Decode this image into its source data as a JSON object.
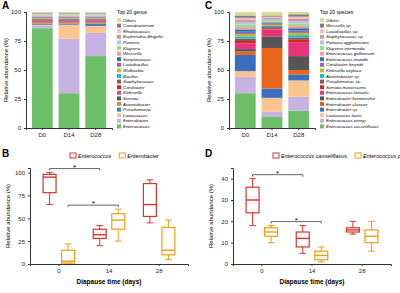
{
  "chart_data": [
    {
      "panel": "A",
      "type": "bar",
      "stacked": true,
      "categories": [
        "D0",
        "D14",
        "D28"
      ],
      "ylabel": "Relative abundance (%)",
      "ylim": [
        0,
        100
      ],
      "yticks": [
        0,
        25,
        50,
        75,
        100
      ],
      "legend_title": "Top 20 genus",
      "legend": "right",
      "series": [
        {
          "name": "Enterococcus",
          "color": "#6dbf67",
          "values": [
            86,
            30,
            62
          ]
        },
        {
          "name": "Enterobacter",
          "color": "#c6b3e3",
          "values": [
            2,
            47,
            20
          ]
        },
        {
          "name": "Lactococcus",
          "color": "#fcc48e",
          "values": [
            1,
            12,
            6
          ]
        },
        {
          "name": "Pseudomonas",
          "color": "#3f7fc1",
          "values": [
            1,
            1,
            2
          ]
        },
        {
          "name": "Acinetobacter",
          "color": "#f0802a",
          "values": [
            1,
            1,
            1
          ]
        },
        {
          "name": "Serratia",
          "color": "#5a5a5a",
          "values": [
            1,
            1,
            1
          ]
        },
        {
          "name": "Klebsiella",
          "color": "#e84a8a",
          "values": [
            1,
            1,
            1
          ]
        },
        {
          "name": "Citrobacter",
          "color": "#d62728",
          "values": [
            0.5,
            0.5,
            0.5
          ]
        },
        {
          "name": "Staphylococcus",
          "color": "#8c564b",
          "values": [
            0.5,
            0.5,
            0.5
          ]
        },
        {
          "name": "Bacillus",
          "color": "#17becf",
          "values": [
            0.5,
            0.5,
            0.5
          ]
        },
        {
          "name": "Wolbachia",
          "color": "#bcbd22",
          "values": [
            0.5,
            0.5,
            0.5
          ]
        },
        {
          "name": "Lactobacillus",
          "color": "#9467bd",
          "values": [
            0.5,
            0.5,
            0.5
          ]
        },
        {
          "name": "Streptococcus",
          "color": "#1f77b4",
          "values": [
            0.5,
            0.5,
            0.5
          ]
        },
        {
          "name": "Weissella",
          "color": "#ff9896",
          "values": [
            0.5,
            0.5,
            0.5
          ]
        },
        {
          "name": "Kluyvera",
          "color": "#98df8a",
          "values": [
            0.5,
            0.5,
            0.5
          ]
        },
        {
          "name": "Pantoea",
          "color": "#aec7e8",
          "values": [
            0.5,
            0.5,
            0.5
          ]
        },
        {
          "name": "Escherichia-Shigella",
          "color": "#c49c94",
          "values": [
            0.5,
            0.5,
            0.5
          ]
        },
        {
          "name": "Rhodococcus",
          "color": "#f7b6d2",
          "values": [
            0.5,
            0.5,
            0.5
          ]
        },
        {
          "name": "Carnobacterium",
          "color": "#7f7f7f",
          "values": [
            0.5,
            0.5,
            0.5
          ]
        },
        {
          "name": "Others",
          "color": "#dbdb8d",
          "values": [
            1,
            1,
            1
          ]
        }
      ]
    },
    {
      "panel": "B",
      "type": "box",
      "categories": [
        "0",
        "14",
        "28"
      ],
      "xlabel": "Diapause time (days)",
      "ylabel": "Relative abundance (%)",
      "ylim": [
        0,
        105
      ],
      "yticks": [
        0,
        25,
        50,
        75,
        100
      ],
      "legend": "top",
      "series": [
        {
          "name": "Enterococcus",
          "color": "#d9342b",
          "boxes": [
            {
              "min": 65,
              "q1": 78,
              "median": 95,
              "q3": 98,
              "max": 100
            },
            {
              "min": 20,
              "q1": 28,
              "median": 32,
              "q3": 38,
              "max": 42
            },
            {
              "min": 45,
              "q1": 52,
              "median": 65,
              "q3": 88,
              "max": 92
            }
          ]
        },
        {
          "name": "Enterobacter",
          "color": "#f39c12",
          "boxes": [
            {
              "min": 0,
              "q1": 1,
              "median": 3,
              "q3": 15,
              "max": 22
            },
            {
              "min": 25,
              "q1": 38,
              "median": 48,
              "q3": 55,
              "max": 60
            },
            {
              "min": 5,
              "q1": 10,
              "median": 15,
              "q3": 40,
              "max": 48
            }
          ]
        }
      ],
      "annotations": [
        {
          "text": "*",
          "series": 0,
          "from": 0,
          "to": 1
        },
        {
          "text": "*",
          "series": 1,
          "from": 0,
          "to": 1
        }
      ]
    },
    {
      "panel": "C",
      "type": "bar",
      "stacked": true,
      "categories": [
        "D0",
        "D14",
        "D28"
      ],
      "ylabel": "Relative abundance (%)",
      "ylim": [
        0,
        100
      ],
      "yticks": [
        0,
        25,
        50,
        75,
        100
      ],
      "legend_title": "Top 20 species",
      "legend": "right",
      "series": [
        {
          "name": "Enterococcus casseliflavus",
          "color": "#6dbf67",
          "values": [
            30,
            10,
            15
          ]
        },
        {
          "name": "Enterococcus pernyi",
          "color": "#c6b3e3",
          "values": [
            14,
            4,
            12
          ]
        },
        {
          "name": "Lactococcus lactis",
          "color": "#fcc48e",
          "values": [
            5,
            12,
            14
          ]
        },
        {
          "name": "Enterobacter sp.",
          "color": "#3a6fc0",
          "values": [
            14,
            8,
            5
          ]
        },
        {
          "name": "Enterobacter cloacae",
          "color": "#e8641b",
          "values": [
            3,
            35,
            4
          ]
        },
        {
          "name": "Enterobacter hormaechei",
          "color": "#555555",
          "values": [
            2,
            10,
            12
          ]
        },
        {
          "name": "Enterococcus faecalis",
          "color": "#e8347a",
          "values": [
            5,
            6,
            12
          ]
        },
        {
          "name": "Serratia marcescens",
          "color": "#d62728",
          "values": [
            2,
            1,
            2
          ]
        },
        {
          "name": "Pseudomonas sp.",
          "color": "#8c564b",
          "values": [
            2,
            1,
            2
          ]
        },
        {
          "name": "Acinetobacter sp.",
          "color": "#17becf",
          "values": [
            2,
            1,
            2
          ]
        },
        {
          "name": "Klebsiella oxytoca",
          "color": "#bcbd22",
          "values": [
            2,
            1,
            2
          ]
        },
        {
          "name": "Citrobacter freundii",
          "color": "#9467bd",
          "values": [
            2,
            1,
            2
          ]
        },
        {
          "name": "Enterococcus mundtii",
          "color": "#1f77b4",
          "values": [
            2,
            1,
            2
          ]
        },
        {
          "name": "Enterococcus gallinarum",
          "color": "#ff9896",
          "values": [
            2,
            1,
            2
          ]
        },
        {
          "name": "Kluyvera intermedia",
          "color": "#98df8a",
          "values": [
            2,
            1,
            2
          ]
        },
        {
          "name": "Pantoea agglomerans",
          "color": "#aec7e8",
          "values": [
            2,
            1,
            2
          ]
        },
        {
          "name": "Staphylococcus sp.",
          "color": "#c49c94",
          "values": [
            2,
            1,
            2
          ]
        },
        {
          "name": "Lactobacillus sp.",
          "color": "#f7b6d2",
          "values": [
            2,
            1,
            2
          ]
        },
        {
          "name": "Weissella sp.",
          "color": "#7f7f7f",
          "values": [
            2,
            1,
            2
          ]
        },
        {
          "name": "Others",
          "color": "#dbdb8d",
          "values": [
            3,
            3,
            2
          ]
        }
      ]
    },
    {
      "panel": "D",
      "type": "box",
      "categories": [
        "0",
        "14",
        "28"
      ],
      "xlabel": "Diapause time (days)",
      "ylabel": "Relative abundance (%)",
      "ylim": [
        0,
        45
      ],
      "yticks": [
        0,
        10,
        20,
        30,
        40
      ],
      "legend": "top",
      "series": [
        {
          "name": "Enterococcus casseliflavus",
          "color": "#d9342b",
          "boxes": [
            {
              "min": 18,
              "q1": 24,
              "median": 30,
              "q3": 36,
              "max": 40
            },
            {
              "min": 5,
              "q1": 8,
              "median": 12,
              "q3": 15,
              "max": 18
            },
            {
              "min": 14,
              "q1": 15,
              "median": 16,
              "q3": 17,
              "max": 20
            }
          ]
        },
        {
          "name": "Enterococcus pernyi",
          "color": "#f39c12",
          "boxes": [
            {
              "min": 10,
              "q1": 13,
              "median": 15,
              "q3": 17,
              "max": 18
            },
            {
              "min": 1,
              "q1": 2,
              "median": 4,
              "q3": 6,
              "max": 8
            },
            {
              "min": 6,
              "q1": 10,
              "median": 13,
              "q3": 16,
              "max": 20
            }
          ]
        }
      ],
      "annotations": [
        {
          "text": "*",
          "series": 0,
          "from": 0,
          "to": 1
        },
        {
          "text": "*",
          "series": 1,
          "from": 0,
          "to": 1
        }
      ]
    }
  ]
}
